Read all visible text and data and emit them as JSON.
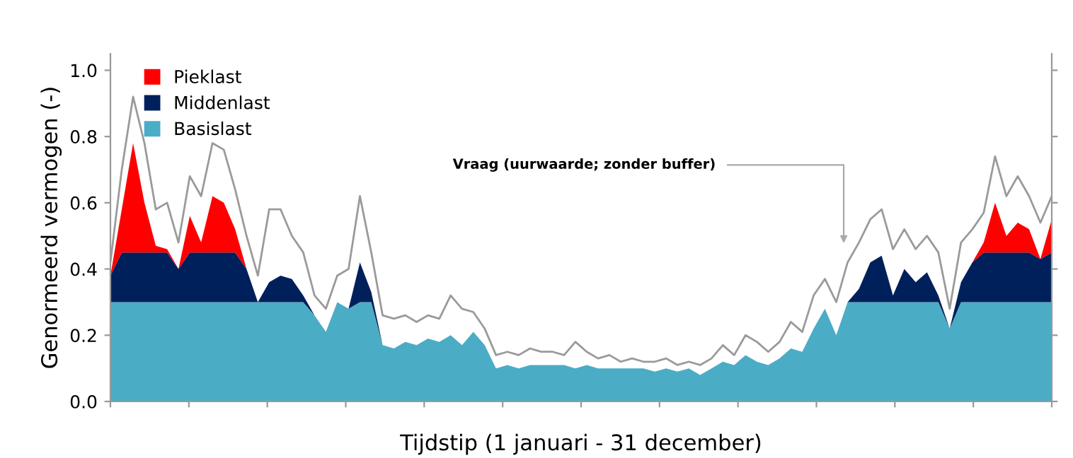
{
  "chart_data": {
    "type": "area",
    "stacked": true,
    "ylabel": "Genormeerd vermogen (-)",
    "xlabel": "Tijdstip (1 januari - 31 december)",
    "categories": [
      null,
      null,
      null,
      null,
      null,
      null,
      null,
      null,
      null,
      null,
      null,
      null,
      null,
      null,
      null,
      null,
      null,
      null,
      null,
      null,
      null,
      null,
      null,
      null,
      null,
      null,
      null,
      null,
      null,
      null,
      null,
      null,
      null,
      null,
      null,
      null,
      null,
      null,
      null,
      null,
      null,
      null,
      null,
      null,
      null,
      null,
      null,
      null,
      null,
      null,
      null,
      null,
      null,
      null,
      null,
      null,
      null,
      null,
      null,
      null,
      null,
      null,
      null,
      null,
      null,
      null,
      null,
      null,
      null,
      null,
      null,
      null,
      null,
      null,
      null,
      null,
      null,
      null,
      null,
      null,
      null,
      null,
      null,
      null
    ],
    "series": [
      {
        "name": "Basislast",
        "color": "#4bacc6",
        "values": [
          0.3,
          0.3,
          0.3,
          0.3,
          0.3,
          0.3,
          0.3,
          0.3,
          0.3,
          0.3,
          0.3,
          0.3,
          0.3,
          0.3,
          0.3,
          0.3,
          0.3,
          0.3,
          0.26,
          0.21,
          0.3,
          0.28,
          0.3,
          0.3,
          0.17,
          0.16,
          0.18,
          0.17,
          0.19,
          0.18,
          0.2,
          0.17,
          0.21,
          0.17,
          0.1,
          0.11,
          0.1,
          0.11,
          0.11,
          0.11,
          0.11,
          0.1,
          0.11,
          0.1,
          0.1,
          0.1,
          0.1,
          0.1,
          0.09,
          0.1,
          0.09,
          0.1,
          0.08,
          0.1,
          0.12,
          0.11,
          0.14,
          0.12,
          0.11,
          0.13,
          0.16,
          0.15,
          0.22,
          0.28,
          0.2,
          0.3,
          0.3,
          0.3,
          0.3,
          0.3,
          0.3,
          0.3,
          0.3,
          0.3,
          0.22,
          0.3,
          0.3,
          0.3,
          0.3,
          0.3,
          0.3,
          0.3,
          0.3,
          0.3
        ]
      },
      {
        "name": "Middenlast",
        "color": "#00205b",
        "values": [
          0.08,
          0.15,
          0.15,
          0.15,
          0.15,
          0.15,
          0.1,
          0.15,
          0.15,
          0.15,
          0.15,
          0.15,
          0.1,
          0,
          0.06,
          0.08,
          0.07,
          0.02,
          0,
          0,
          0,
          0,
          0.12,
          0.03,
          0,
          0,
          0,
          0,
          0,
          0,
          0,
          0,
          0,
          0,
          0,
          0,
          0,
          0,
          0,
          0,
          0,
          0,
          0,
          0,
          0,
          0,
          0,
          0,
          0,
          0,
          0,
          0,
          0,
          0,
          0,
          0,
          0,
          0,
          0,
          0,
          0,
          0,
          0,
          0,
          0,
          0,
          0.04,
          0.12,
          0.14,
          0.02,
          0.1,
          0.06,
          0.09,
          0.02,
          0,
          0.06,
          0.12,
          0.15,
          0.15,
          0.15,
          0.15,
          0.15,
          0.13,
          0.15
        ]
      },
      {
        "name": "Pieklast",
        "color": "#ff0000",
        "values": [
          0,
          0.13,
          0.33,
          0.15,
          0.02,
          0.01,
          0,
          0.11,
          0.03,
          0.17,
          0.15,
          0.07,
          0,
          0,
          0,
          0,
          0,
          0,
          0,
          0,
          0,
          0,
          0,
          0,
          0,
          0,
          0,
          0,
          0,
          0,
          0,
          0,
          0,
          0,
          0,
          0,
          0,
          0,
          0,
          0,
          0,
          0,
          0,
          0,
          0,
          0,
          0,
          0,
          0,
          0,
          0,
          0,
          0,
          0,
          0,
          0,
          0,
          0,
          0,
          0,
          0,
          0,
          0,
          0,
          0,
          0,
          0,
          0,
          0,
          0,
          0,
          0,
          0,
          0,
          0,
          0,
          0,
          0.03,
          0.15,
          0.05,
          0.09,
          0.07,
          0,
          0.1
        ]
      },
      {
        "type": "line",
        "color": "#9a9a9a",
        "values": [
          0.42,
          0.7,
          0.92,
          0.78,
          0.58,
          0.6,
          0.48,
          0.68,
          0.62,
          0.78,
          0.76,
          0.64,
          0.5,
          0.38,
          0.58,
          0.58,
          0.5,
          0.45,
          0.32,
          0.28,
          0.38,
          0.4,
          0.62,
          0.45,
          0.26,
          0.25,
          0.26,
          0.24,
          0.26,
          0.25,
          0.32,
          0.28,
          0.27,
          0.22,
          0.14,
          0.15,
          0.14,
          0.16,
          0.15,
          0.15,
          0.14,
          0.18,
          0.15,
          0.13,
          0.14,
          0.12,
          0.13,
          0.12,
          0.12,
          0.13,
          0.11,
          0.12,
          0.11,
          0.13,
          0.17,
          0.14,
          0.2,
          0.18,
          0.15,
          0.18,
          0.24,
          0.21,
          0.32,
          0.37,
          0.3,
          0.42,
          0.48,
          0.55,
          0.58,
          0.46,
          0.52,
          0.46,
          0.5,
          0.45,
          0.28,
          0.48,
          0.52,
          0.57,
          0.74,
          0.62,
          0.68,
          0.62,
          0.54,
          0.62
        ]
      }
    ],
    "ylim": [
      0,
      1.05
    ],
    "yticks": [
      {
        "value": 0,
        "label": "0.0"
      },
      {
        "value": 0.2,
        "label": "0.2"
      },
      {
        "value": 0.4,
        "label": "0.4"
      },
      {
        "value": 0.6,
        "label": "0.6"
      },
      {
        "value": 0.8,
        "label": "0.8"
      },
      {
        "value": 1,
        "label": "1.0"
      }
    ],
    "annotations": [
      "Vraag (uurwaarde; zonder buffer)"
    ],
    "legend": "top left",
    "grid": false,
    "marker": "none",
    "line_style": "solid"
  }
}
